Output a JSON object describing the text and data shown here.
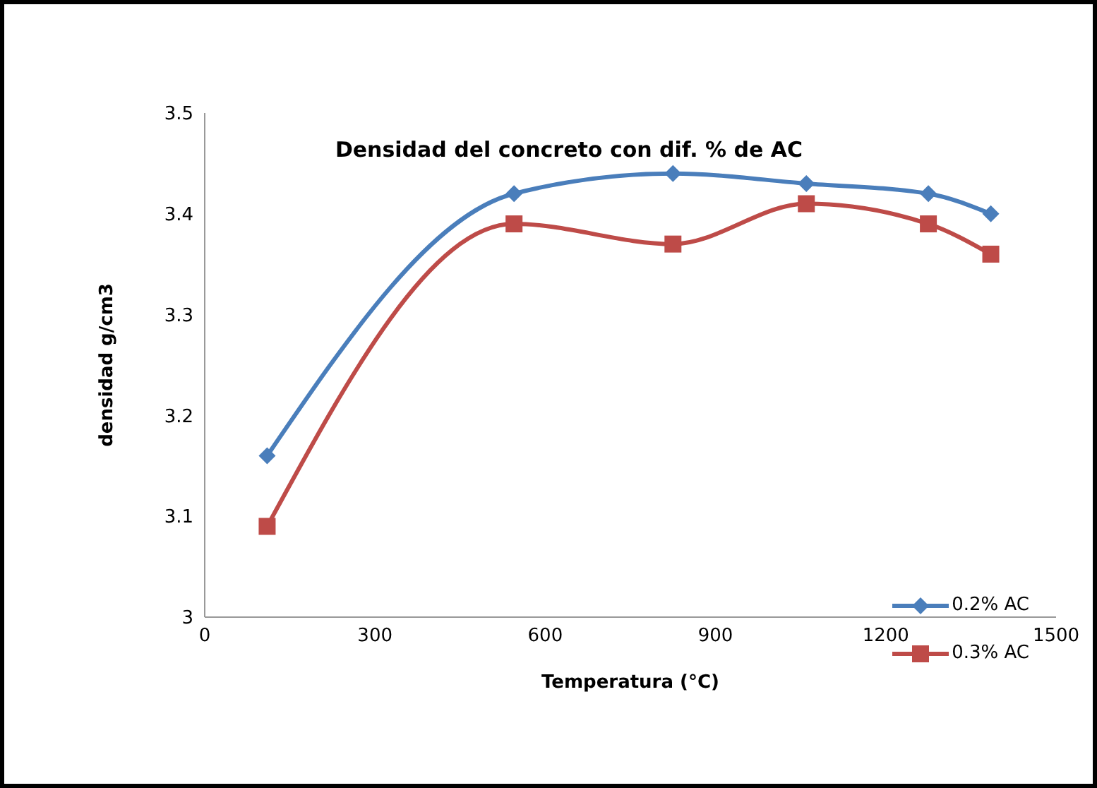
{
  "chart_data": {
    "type": "line",
    "title": "Densidad del concreto con dif. % de AC",
    "xlabel": "Temperatura (°C)",
    "ylabel": "densidad g/cm3",
    "x": [
      110,
      545,
      825,
      1060,
      1275,
      1385
    ],
    "series": [
      {
        "name": "0.2% AC",
        "color": "#4a7ebb",
        "marker": "diamond",
        "values": [
          3.16,
          3.42,
          3.44,
          3.43,
          3.42,
          3.4
        ]
      },
      {
        "name": "0.3% AC",
        "color": "#be4b48",
        "marker": "square",
        "values": [
          3.09,
          3.39,
          3.37,
          3.41,
          3.39,
          3.36
        ]
      }
    ],
    "xlim": [
      0,
      1500
    ],
    "xticks": [
      0,
      300,
      600,
      900,
      1200,
      1500
    ],
    "ylim": [
      3,
      3.5
    ],
    "yticks": [
      3,
      3.1,
      3.2,
      3.3,
      3.4,
      3.5
    ],
    "grid": false,
    "legend": "bottom right",
    "line_style": "solid"
  }
}
